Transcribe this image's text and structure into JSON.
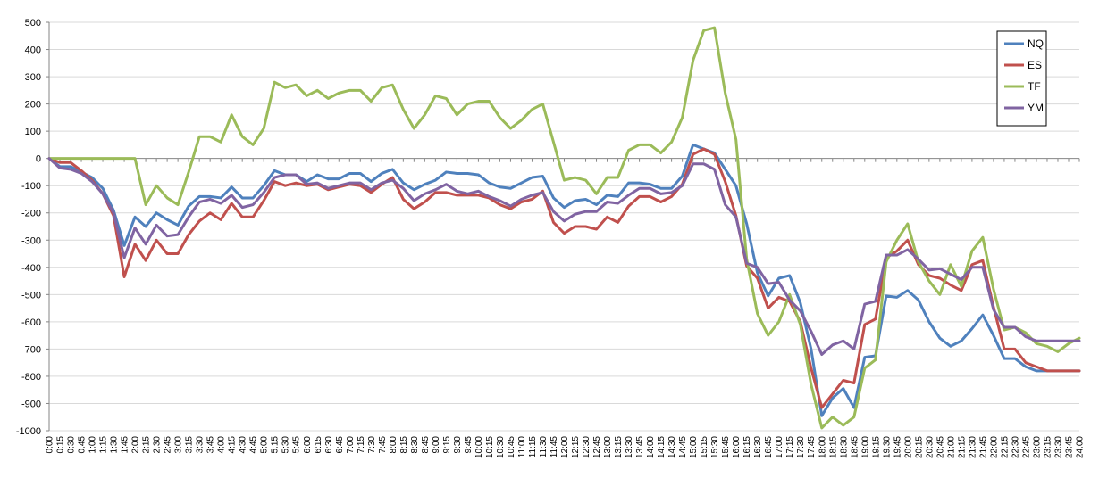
{
  "chart_data": {
    "type": "line",
    "title": "",
    "xlabel": "",
    "ylabel": "",
    "ylim": [
      -1000,
      500
    ],
    "yticks": [
      500,
      400,
      300,
      200,
      100,
      0,
      -100,
      -200,
      -300,
      -400,
      -500,
      -600,
      -700,
      -800,
      -900,
      -1000
    ],
    "grid": true,
    "legend_position": "top-right",
    "x": [
      "0:00",
      "0:15",
      "0:30",
      "0:45",
      "1:00",
      "1:15",
      "1:30",
      "1:45",
      "2:00",
      "2:15",
      "2:30",
      "2:45",
      "3:00",
      "3:15",
      "3:30",
      "3:45",
      "4:00",
      "4:15",
      "4:30",
      "4:45",
      "5:00",
      "5:15",
      "5:30",
      "5:45",
      "6:00",
      "6:15",
      "6:30",
      "6:45",
      "7:00",
      "7:15",
      "7:30",
      "7:45",
      "8:00",
      "8:15",
      "8:30",
      "8:45",
      "9:00",
      "9:15",
      "9:30",
      "9:45",
      "10:00",
      "10:15",
      "10:30",
      "10:45",
      "11:00",
      "11:15",
      "11:30",
      "11:45",
      "12:00",
      "12:15",
      "12:30",
      "12:45",
      "13:00",
      "13:15",
      "13:30",
      "13:45",
      "14:00",
      "14:15",
      "14:30",
      "14:45",
      "15:00",
      "15:15",
      "15:30",
      "15:45",
      "16:00",
      "16:15",
      "16:30",
      "16:45",
      "17:00",
      "17:15",
      "17:30",
      "17:45",
      "18:00",
      "18:15",
      "18:30",
      "18:45",
      "19:00",
      "19:15",
      "19:30",
      "19:45",
      "20:00",
      "20:15",
      "20:30",
      "20:45",
      "21:00",
      "21:15",
      "21:30",
      "21:45",
      "22:00",
      "22:15",
      "22:30",
      "22:45",
      "23:00",
      "23:15",
      "23:30",
      "23:45",
      "24:00"
    ],
    "series": [
      {
        "name": "NQ",
        "color": "#4f81bd",
        "values": [
          0,
          -30,
          -30,
          -50,
          -70,
          -110,
          -190,
          -320,
          -215,
          -250,
          -200,
          -225,
          -245,
          -175,
          -140,
          -140,
          -145,
          -105,
          -145,
          -145,
          -100,
          -45,
          -60,
          -60,
          -85,
          -60,
          -75,
          -75,
          -55,
          -55,
          -85,
          -55,
          -40,
          -90,
          -115,
          -95,
          -80,
          -50,
          -55,
          -55,
          -60,
          -90,
          -105,
          -110,
          -90,
          -70,
          -65,
          -145,
          -180,
          -155,
          -150,
          -170,
          -135,
          -140,
          -90,
          -90,
          -95,
          -110,
          -110,
          -65,
          50,
          35,
          20,
          -40,
          -100,
          -240,
          -420,
          -505,
          -440,
          -430,
          -530,
          -700,
          -945,
          -880,
          -845,
          -915,
          -730,
          -725,
          -505,
          -510,
          -485,
          -520,
          -600,
          -660,
          -690,
          -670,
          -625,
          -575,
          -650,
          -735,
          -735,
          -765,
          -780,
          -780,
          -780,
          -780,
          -780
        ]
      },
      {
        "name": "ES",
        "color": "#c0504d",
        "values": [
          0,
          -15,
          -15,
          -45,
          -80,
          -130,
          -210,
          -435,
          -315,
          -375,
          -300,
          -350,
          -350,
          -280,
          -230,
          -200,
          -225,
          -165,
          -215,
          -215,
          -155,
          -85,
          -100,
          -90,
          -100,
          -95,
          -115,
          -105,
          -95,
          -100,
          -125,
          -95,
          -70,
          -150,
          -185,
          -160,
          -125,
          -125,
          -135,
          -135,
          -135,
          -145,
          -170,
          -185,
          -160,
          -150,
          -120,
          -235,
          -275,
          -250,
          -250,
          -260,
          -215,
          -235,
          -175,
          -140,
          -140,
          -160,
          -140,
          -95,
          15,
          35,
          15,
          -85,
          -210,
          -395,
          -440,
          -550,
          -510,
          -525,
          -600,
          -770,
          -915,
          -865,
          -815,
          -825,
          -610,
          -590,
          -365,
          -340,
          -300,
          -390,
          -430,
          -440,
          -465,
          -485,
          -390,
          -375,
          -545,
          -700,
          -700,
          -750,
          -765,
          -780,
          -780,
          -780,
          -780
        ]
      },
      {
        "name": "TF",
        "color": "#9bbb59",
        "values": [
          0,
          0,
          0,
          0,
          0,
          0,
          0,
          0,
          0,
          -170,
          -100,
          -145,
          -170,
          -50,
          80,
          80,
          60,
          160,
          80,
          50,
          110,
          280,
          260,
          270,
          230,
          250,
          220,
          240,
          250,
          250,
          210,
          260,
          270,
          180,
          110,
          160,
          230,
          220,
          160,
          200,
          210,
          210,
          150,
          110,
          140,
          180,
          200,
          60,
          -80,
          -70,
          -80,
          -130,
          -70,
          -70,
          30,
          50,
          50,
          20,
          60,
          150,
          360,
          470,
          480,
          240,
          70,
          -370,
          -570,
          -650,
          -600,
          -500,
          -610,
          -830,
          -990,
          -950,
          -980,
          -950,
          -770,
          -740,
          -380,
          -300,
          -240,
          -380,
          -450,
          -500,
          -390,
          -470,
          -340,
          -290,
          -480,
          -630,
          -620,
          -640,
          -680,
          -690,
          -710,
          -680,
          -660
        ]
      },
      {
        "name": "YM",
        "color": "#8064a2",
        "values": [
          0,
          -35,
          -40,
          -55,
          -85,
          -130,
          -200,
          -365,
          -255,
          -315,
          -245,
          -285,
          -280,
          -215,
          -160,
          -150,
          -165,
          -135,
          -180,
          -170,
          -125,
          -70,
          -60,
          -60,
          -95,
          -90,
          -110,
          -100,
          -90,
          -90,
          -115,
          -90,
          -80,
          -110,
          -155,
          -130,
          -115,
          -95,
          -120,
          -130,
          -120,
          -140,
          -155,
          -175,
          -150,
          -135,
          -125,
          -195,
          -230,
          -205,
          -195,
          -195,
          -160,
          -165,
          -135,
          -110,
          -110,
          -130,
          -125,
          -100,
          -20,
          -20,
          -40,
          -170,
          -215,
          -385,
          -400,
          -460,
          -455,
          -520,
          -560,
          -635,
          -720,
          -685,
          -670,
          -700,
          -535,
          -525,
          -355,
          -355,
          -335,
          -370,
          -410,
          -405,
          -425,
          -445,
          -400,
          -400,
          -555,
          -620,
          -620,
          -655,
          -670,
          -670,
          -670,
          -670,
          -670
        ]
      }
    ]
  }
}
